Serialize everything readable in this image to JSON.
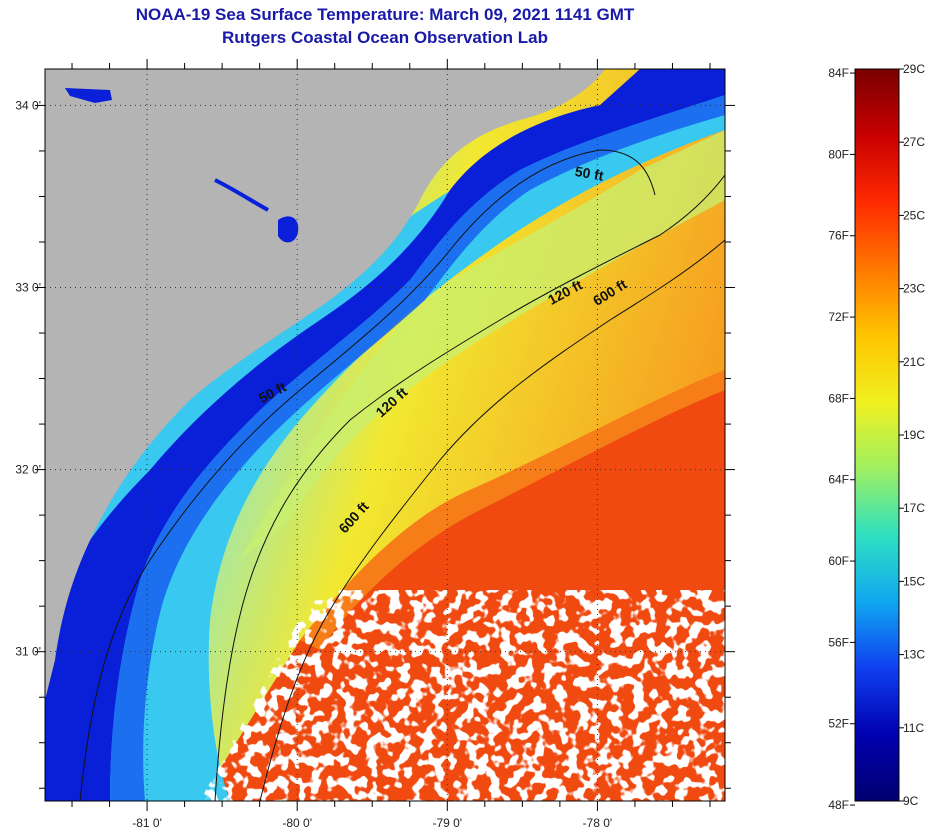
{
  "title": {
    "line1": "NOAA-19 Sea Surface Temperature:  March 09, 2021 1141 GMT",
    "line2": "Rutgers Coastal Ocean Observation Lab"
  },
  "map": {
    "lon_range": [
      -81.68,
      -77.15
    ],
    "lat_range": [
      30.18,
      34.2
    ],
    "lon_ticks": [
      {
        "value": -81,
        "label": "-81 0'"
      },
      {
        "value": -80,
        "label": "-80 0'"
      },
      {
        "value": -79,
        "label": "-79 0'"
      },
      {
        "value": -78,
        "label": "-78 0'"
      }
    ],
    "lat_ticks": [
      {
        "value": 34,
        "label": "34 0'"
      },
      {
        "value": 33,
        "label": "33 0'"
      },
      {
        "value": 32,
        "label": "32 0'"
      },
      {
        "value": 31,
        "label": "31 0'"
      }
    ],
    "grid": "dotted",
    "contour_labels": [
      {
        "id": "50ft-north",
        "text": "50 ft",
        "lon": -78.06,
        "lat": 33.6,
        "angle": 10
      },
      {
        "id": "50ft-south",
        "text": "50 ft",
        "lon": -80.15,
        "lat": 32.4,
        "angle": -28
      },
      {
        "id": "120ft-north",
        "text": "120 ft",
        "lon": -78.2,
        "lat": 32.95,
        "angle": -28
      },
      {
        "id": "120ft-south",
        "text": "120 ft",
        "lon": -79.35,
        "lat": 32.35,
        "angle": -42
      },
      {
        "id": "600ft-north",
        "text": "600 ft",
        "lon": -77.9,
        "lat": 32.95,
        "angle": -32
      },
      {
        "id": "600ft-south",
        "text": "600 ft",
        "lon": -79.6,
        "lat": 31.72,
        "angle": -48
      }
    ],
    "colors": {
      "land": "#b4b4b4",
      "cloud": "#ffffff",
      "coast_cold": "#0a20d8",
      "shelf": "#2ab8f0",
      "mid_shelf": "#a8f0b0",
      "yellow": "#f2e830",
      "gulf_stream": "#f04a10"
    }
  },
  "colorbar": {
    "temp_range_c": [
      9,
      29
    ],
    "f_labels": [
      "84F",
      "80F",
      "76F",
      "72F",
      "68F",
      "64F",
      "60F",
      "56F",
      "52F",
      "48F"
    ],
    "c_labels": [
      "29C",
      "27C",
      "25C",
      "23C",
      "21C",
      "19C",
      "17C",
      "15C",
      "13C",
      "11C",
      "9C"
    ],
    "gradient": [
      "#7a0000",
      "#c80000",
      "#ff2a00",
      "#ff7800",
      "#ffc400",
      "#f0f020",
      "#a0f060",
      "#30e0c0",
      "#10a8f0",
      "#1040f0",
      "#0000b0",
      "#000070"
    ]
  }
}
